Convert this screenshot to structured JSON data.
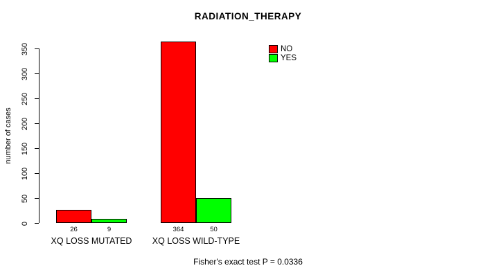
{
  "title": "RADIATION_THERAPY",
  "footer": "Fisher's exact test P = 0.0336",
  "colors": {
    "no": "#FF0000",
    "yes": "#00FF00",
    "axis": "#000000",
    "background": "#FFFFFF"
  },
  "chart_data": {
    "type": "bar",
    "title": "RADIATION_THERAPY",
    "xlabel": "",
    "ylabel": "number of cases",
    "categories": [
      "XQ LOSS MUTATED",
      "XQ LOSS WILD-TYPE"
    ],
    "series": [
      {
        "name": "NO",
        "color": "#FF0000",
        "values": [
          26,
          364
        ]
      },
      {
        "name": "YES",
        "color": "#00FF00",
        "values": [
          9,
          50
        ]
      }
    ],
    "bar_value_labels": [
      [
        "26",
        "9"
      ],
      [
        "364",
        "50"
      ]
    ],
    "yticks": [
      0,
      50,
      100,
      150,
      200,
      250,
      300,
      350
    ],
    "ylim": [
      0,
      350
    ],
    "grid": false,
    "legend_position": "top-right",
    "legend_entries": [
      "NO",
      "YES"
    ],
    "annotation": "Fisher's exact test P = 0.0336"
  }
}
